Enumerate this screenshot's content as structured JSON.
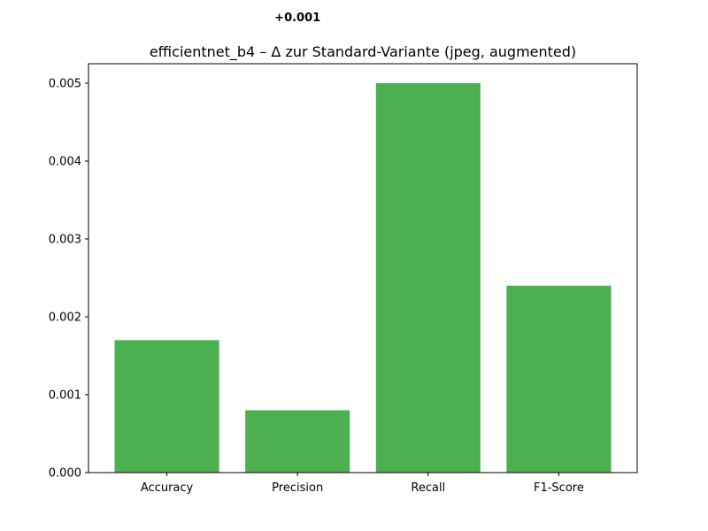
{
  "chart_data": {
    "type": "bar",
    "title": "efficientnet_b4 – Δ zur Standard-Variante (jpeg, augmented)",
    "xlabel": "",
    "ylabel": "",
    "categories": [
      "Accuracy",
      "Precision",
      "Recall",
      "F1-Score"
    ],
    "values": [
      0.0017,
      0.0008,
      0.005,
      0.0024
    ],
    "ylim": [
      0,
      0.00525
    ],
    "yticks": [
      0.0,
      0.001,
      0.002,
      0.003,
      0.004,
      0.005
    ],
    "ytick_labels": [
      "0.000",
      "0.001",
      "0.002",
      "0.003",
      "0.004",
      "0.005"
    ],
    "annotations": [
      {
        "category": "Precision",
        "text": "+0.001"
      }
    ],
    "grid": false,
    "bar_color": "#4caf50"
  }
}
